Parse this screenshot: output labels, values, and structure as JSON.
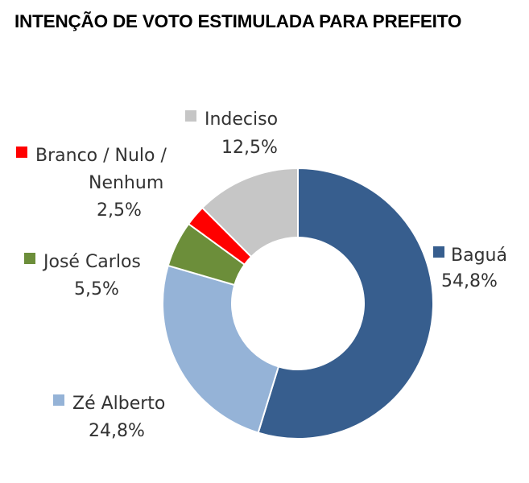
{
  "chart_data": {
    "type": "pie",
    "title": "INTENÇÃO DE VOTO ESTIMULADA PARA PREFEITO",
    "slices": [
      {
        "name": "Baguá",
        "value": 54.8,
        "value_label": "54,8%",
        "color": "#375E8E"
      },
      {
        "name": "Zé Alberto",
        "value": 24.8,
        "value_label": "24,8%",
        "color": "#95B3D7"
      },
      {
        "name": "José Carlos",
        "value": 5.5,
        "value_label": "5,5%",
        "color": "#6C8E3A"
      },
      {
        "name": "Branco / Nulo / Nenhum",
        "value": 2.5,
        "value_label": "2,5%",
        "color": "#FF0000"
      },
      {
        "name": "Indeciso",
        "value": 12.5,
        "value_label": "12,5%",
        "color": "#C6C6C6"
      }
    ],
    "legend_placement": "labels beside slices"
  }
}
